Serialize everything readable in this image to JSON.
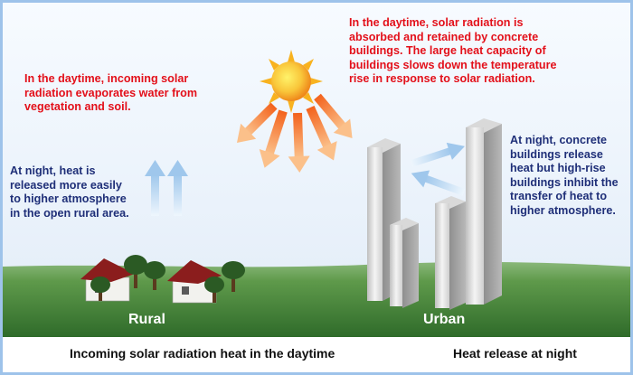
{
  "annotations": {
    "day_rural": "In the daytime, incoming solar\nradiation evaporates water from\nvegetation and soil.",
    "day_urban": "In the daytime, solar radiation is\nabsorbed and retained by concrete\nbuildings. The large heat capacity of\nbuildings slows down the temperature\nrise in response to solar radiation.",
    "night_rural": "At night, heat is\nreleased more easily\nto higher atmosphere\nin the open rural area.",
    "night_urban": "At night, concrete\nbuildings release\nheat but high-rise\nbuildings inhibit the\ntransfer of heat to\nhigher atmosphere."
  },
  "labels": {
    "rural": "Rural",
    "urban": "Urban"
  },
  "legend": {
    "solar": "Incoming solar radiation heat in the daytime",
    "night": "Heat release at night"
  },
  "colors": {
    "annotation_day": "#e3101a",
    "annotation_night": "#1f2f78",
    "solar_arrow": "#f08a3a",
    "night_arrow": "#a9cdee",
    "grass": "#4e8a3f",
    "sun": "#f9b233",
    "frame": "#9ec3ea"
  }
}
